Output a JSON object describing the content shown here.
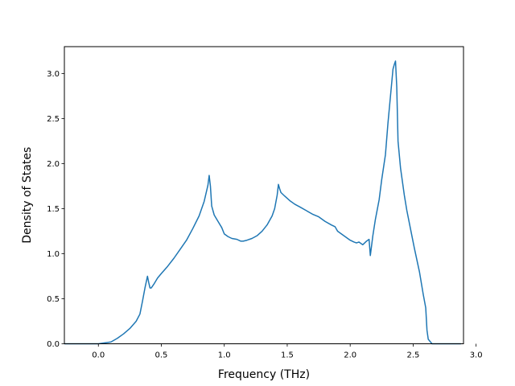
{
  "chart_data": {
    "type": "line",
    "title": "",
    "xlabel": "Frequency (THz)",
    "ylabel": "Density of States",
    "xlim": [
      -0.27,
      2.9
    ],
    "ylim": [
      0.0,
      3.3
    ],
    "grid": false,
    "xticks": [
      {
        "value": 0.0,
        "label": "0.0"
      },
      {
        "value": 0.5,
        "label": "0.5"
      },
      {
        "value": 1.0,
        "label": "1.0"
      },
      {
        "value": 1.5,
        "label": "1.5"
      },
      {
        "value": 2.0,
        "label": "2.0"
      },
      {
        "value": 2.5,
        "label": "2.5"
      },
      {
        "value": 3.0,
        "label": "3.0"
      }
    ],
    "yticks": [
      {
        "value": 0.0,
        "label": "0.0"
      },
      {
        "value": 0.5,
        "label": "0.5"
      },
      {
        "value": 1.0,
        "label": "1.0"
      },
      {
        "value": 1.5,
        "label": "1.5"
      },
      {
        "value": 2.0,
        "label": "2.0"
      },
      {
        "value": 2.5,
        "label": "2.5"
      },
      {
        "value": 3.0,
        "label": "3.0"
      }
    ],
    "series": [
      {
        "color": "#1f77b4",
        "x": [
          -0.27,
          0.0,
          0.05,
          0.1,
          0.15,
          0.2,
          0.25,
          0.3,
          0.33,
          0.35,
          0.37,
          0.39,
          0.4,
          0.41,
          0.42,
          0.44,
          0.47,
          0.5,
          0.55,
          0.6,
          0.65,
          0.7,
          0.75,
          0.8,
          0.84,
          0.87,
          0.88,
          0.89,
          0.9,
          0.92,
          0.95,
          0.98,
          1.0,
          1.03,
          1.06,
          1.1,
          1.13,
          1.15,
          1.18,
          1.22,
          1.26,
          1.3,
          1.34,
          1.38,
          1.4,
          1.42,
          1.43,
          1.44,
          1.45,
          1.48,
          1.52,
          1.56,
          1.6,
          1.65,
          1.7,
          1.75,
          1.8,
          1.85,
          1.88,
          1.9,
          1.95,
          2.0,
          2.03,
          2.05,
          2.07,
          2.1,
          2.13,
          2.15,
          2.16,
          2.18,
          2.2,
          2.23,
          2.25,
          2.28,
          2.3,
          2.32,
          2.34,
          2.35,
          2.36,
          2.37,
          2.38,
          2.4,
          2.43,
          2.45,
          2.48,
          2.51,
          2.55,
          2.58,
          2.6,
          2.61,
          2.62,
          2.65,
          2.7,
          2.8,
          2.88
        ],
        "y": [
          0.0,
          0.0,
          0.01,
          0.02,
          0.06,
          0.11,
          0.17,
          0.25,
          0.33,
          0.47,
          0.62,
          0.75,
          0.68,
          0.62,
          0.62,
          0.66,
          0.73,
          0.78,
          0.86,
          0.95,
          1.05,
          1.15,
          1.28,
          1.42,
          1.58,
          1.76,
          1.87,
          1.75,
          1.53,
          1.43,
          1.36,
          1.29,
          1.22,
          1.19,
          1.17,
          1.16,
          1.14,
          1.14,
          1.15,
          1.17,
          1.2,
          1.25,
          1.32,
          1.42,
          1.5,
          1.65,
          1.77,
          1.72,
          1.68,
          1.64,
          1.59,
          1.55,
          1.52,
          1.48,
          1.44,
          1.41,
          1.36,
          1.32,
          1.3,
          1.25,
          1.2,
          1.15,
          1.13,
          1.12,
          1.13,
          1.1,
          1.14,
          1.16,
          0.98,
          1.2,
          1.38,
          1.6,
          1.82,
          2.1,
          2.45,
          2.75,
          3.05,
          3.1,
          3.14,
          2.85,
          2.25,
          1.95,
          1.65,
          1.48,
          1.27,
          1.06,
          0.8,
          0.55,
          0.4,
          0.15,
          0.05,
          0.0,
          0.0,
          0.0,
          0.0
        ]
      }
    ]
  }
}
